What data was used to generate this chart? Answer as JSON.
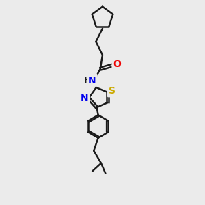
{
  "bg_color": "#ebebeb",
  "bond_color": "#1a1a1a",
  "atom_colors": {
    "O": "#ee0000",
    "N": "#0000ee",
    "S": "#ccaa00",
    "C": "#1a1a1a"
  },
  "bond_width": 1.8,
  "font_size_atom": 9.5,
  "xlim": [
    0,
    10
  ],
  "ylim": [
    0,
    14
  ]
}
